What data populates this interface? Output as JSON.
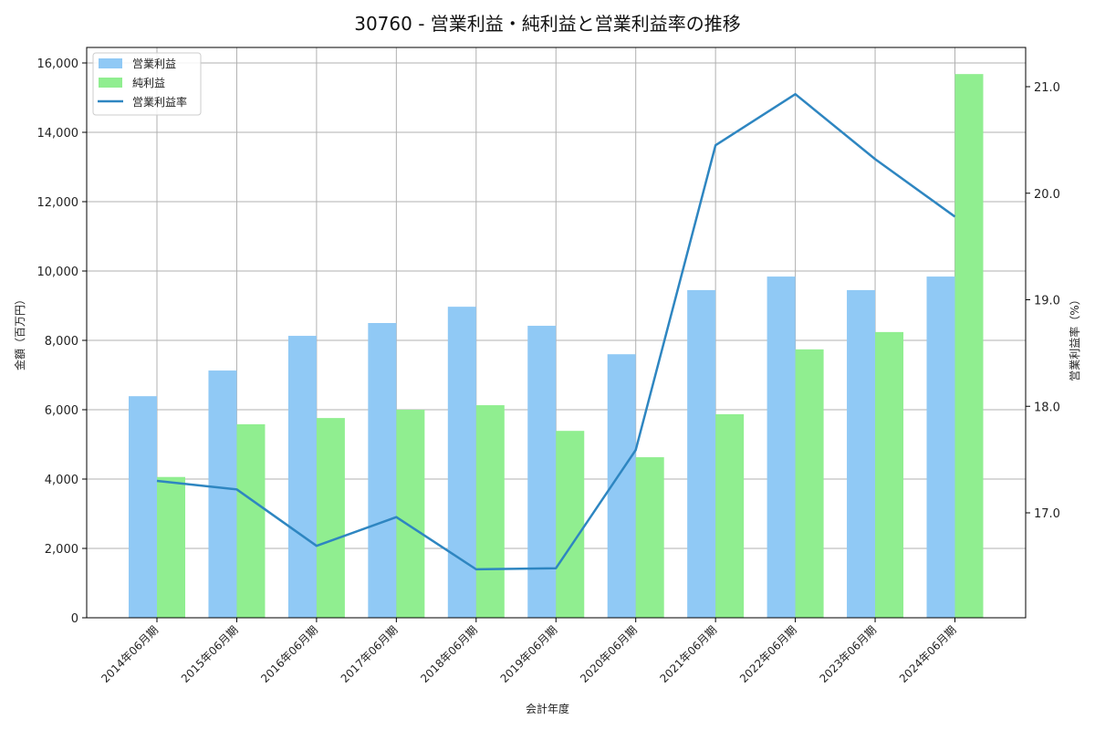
{
  "chart_data": {
    "type": "bar",
    "title": "30760 - 営業利益・純利益と営業利益率の推移",
    "xlabel": "会計年度",
    "ylabel": "金額（百万円）",
    "y2label": "営業利益率（%）",
    "categories": [
      "2014年06月期",
      "2015年06月期",
      "2016年06月期",
      "2017年06月期",
      "2018年06月期",
      "2019年06月期",
      "2020年06月期",
      "2021年06月期",
      "2022年06月期",
      "2023年06月期",
      "2024年06月期"
    ],
    "series": [
      {
        "name": "営業利益",
        "type": "bar",
        "axis": "left",
        "color": "#90c9f5",
        "values": [
          6390,
          7130,
          8130,
          8500,
          8970,
          8420,
          7600,
          9450,
          9840,
          9450,
          9840
        ]
      },
      {
        "name": "純利益",
        "type": "bar",
        "axis": "left",
        "color": "#90ee90",
        "values": [
          4060,
          5580,
          5760,
          6000,
          6130,
          5390,
          4630,
          5870,
          7740,
          8240,
          15680
        ]
      },
      {
        "name": "営業利益率",
        "type": "line",
        "axis": "right",
        "color": "#2e86c1",
        "values": [
          17.3,
          17.22,
          16.69,
          16.96,
          16.47,
          16.48,
          17.59,
          20.45,
          20.93,
          20.32,
          19.78
        ]
      }
    ],
    "ylim": [
      0,
      16450
    ],
    "y2lim": [
      16.0,
      21.35
    ],
    "yticks": [
      0,
      2000,
      4000,
      6000,
      8000,
      10000,
      12000,
      14000,
      16000
    ],
    "ytick_labels": [
      "0",
      "2,000",
      "4,000",
      "6,000",
      "8,000",
      "10,000",
      "12,000",
      "14,000",
      "16,000"
    ],
    "y2ticks": [
      17.0,
      18.0,
      19.0,
      20.0,
      21.0
    ],
    "y2tick_labels": [
      "17.0",
      "18.0",
      "19.0",
      "20.0",
      "21.0"
    ],
    "grid": true,
    "legend_position": "upper left",
    "legend": [
      "営業利益",
      "純利益",
      "営業利益率"
    ]
  }
}
